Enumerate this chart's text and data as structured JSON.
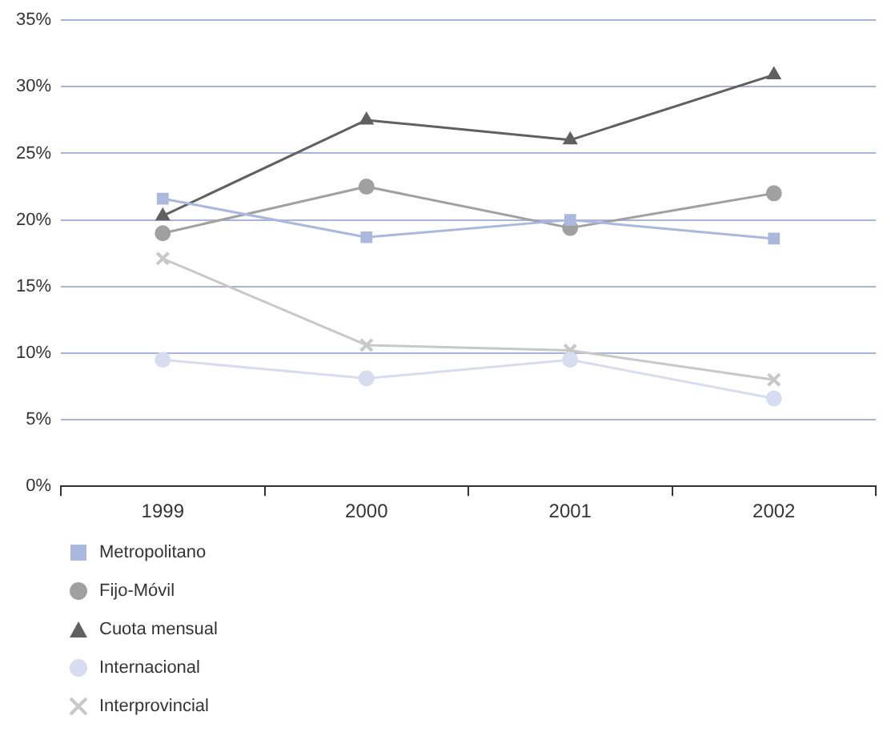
{
  "chart_data": {
    "type": "line",
    "categories": [
      "1999",
      "2000",
      "2001",
      "2002"
    ],
    "series": [
      {
        "name": "Metropolitano",
        "color": "#a9b8dc",
        "marker": "square",
        "values": [
          21.6,
          18.7,
          20.0,
          18.6
        ]
      },
      {
        "name": "Fijo-Móvil",
        "color": "#a0a0a0",
        "marker": "circle",
        "values": [
          19.0,
          22.5,
          19.4,
          22.0
        ]
      },
      {
        "name": "Cuota mensual",
        "color": "#606060",
        "marker": "triangle",
        "values": [
          20.3,
          27.5,
          26.0,
          30.9
        ]
      },
      {
        "name": "Internacional",
        "color": "#d8dcf0",
        "marker": "circle",
        "values": [
          9.5,
          8.1,
          9.5,
          6.6
        ]
      },
      {
        "name": "Interprovincial",
        "color": "#c8c8c8",
        "marker": "cross",
        "values": [
          17.1,
          10.6,
          10.2,
          8.0
        ]
      }
    ],
    "ylim": [
      0,
      35
    ],
    "yticks": [
      {
        "value": 0,
        "label": "0%"
      },
      {
        "value": 5,
        "label": "5%"
      },
      {
        "value": 10,
        "label": "10%"
      },
      {
        "value": 15,
        "label": "15%"
      },
      {
        "value": 20,
        "label": "20%"
      },
      {
        "value": 25,
        "label": "25%"
      },
      {
        "value": 30,
        "label": "30%"
      },
      {
        "value": 35,
        "label": "35%"
      }
    ],
    "grid": "y",
    "legend": "bottom left",
    "line_style": "solid"
  }
}
